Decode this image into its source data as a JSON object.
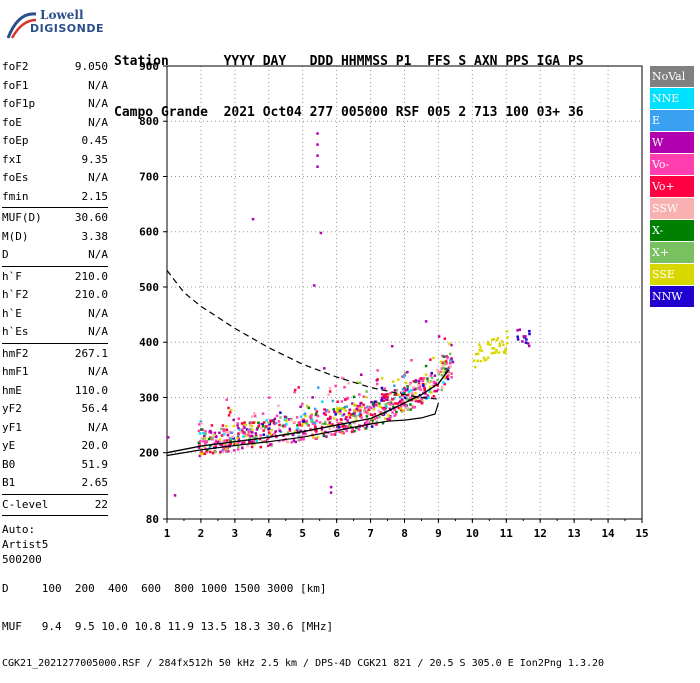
{
  "logo": {
    "line1": "Lowell",
    "line2": "DIGISONDE"
  },
  "header": {
    "row1": "Station       YYYY DAY   DDD HHMMSS P1  FFS S AXN PPS IGA PS",
    "row2": "Campo Grande  2021 Oct04 277 005000 RSF 005 2 713 100 03+ 36"
  },
  "params": {
    "group1": [
      {
        "k": "foF2",
        "v": "9.050"
      },
      {
        "k": "foF1",
        "v": "N/A"
      },
      {
        "k": "foF1p",
        "v": "N/A"
      },
      {
        "k": "foE",
        "v": "N/A"
      },
      {
        "k": "foEp",
        "v": "0.45"
      },
      {
        "k": "fxI",
        "v": "9.35"
      },
      {
        "k": "foEs",
        "v": "N/A"
      },
      {
        "k": "fmin",
        "v": "2.15"
      }
    ],
    "group2": [
      {
        "k": "MUF(D)",
        "v": "30.60"
      },
      {
        "k": "M(D)",
        "v": "3.38"
      },
      {
        "k": "D",
        "v": "N/A"
      }
    ],
    "group3": [
      {
        "k": "h`F",
        "v": "210.0"
      },
      {
        "k": "h`F2",
        "v": "210.0"
      },
      {
        "k": "h`E",
        "v": "N/A"
      },
      {
        "k": "h`Es",
        "v": "N/A"
      }
    ],
    "group4": [
      {
        "k": "hmF2",
        "v": "267.1"
      },
      {
        "k": "hmF1",
        "v": "N/A"
      },
      {
        "k": "hmE",
        "v": "110.0"
      },
      {
        "k": "yF2",
        "v": "56.4"
      },
      {
        "k": "yF1",
        "v": "N/A"
      },
      {
        "k": "yE",
        "v": "20.0"
      },
      {
        "k": "B0",
        "v": "51.9"
      },
      {
        "k": "B1",
        "v": "2.65"
      }
    ],
    "group5": [
      {
        "k": "C-level",
        "v": "22"
      }
    ],
    "notes": [
      "Auto:",
      "Artist5",
      "500200"
    ]
  },
  "legend": [
    {
      "label": "NoVal",
      "color": "#808080"
    },
    {
      "label": "NNE",
      "color": "#00e0ff"
    },
    {
      "label": "E",
      "color": "#3aa0f0"
    },
    {
      "label": "W",
      "color": "#b000b0"
    },
    {
      "label": "Vo-",
      "color": "#ff3fb0"
    },
    {
      "label": "Vo+",
      "color": "#ff0040"
    },
    {
      "label": "SSW",
      "color": "#f8b0b0"
    },
    {
      "label": "X-",
      "color": "#008000"
    },
    {
      "label": "X+",
      "color": "#78c060"
    },
    {
      "label": "SSE",
      "color": "#d8d800"
    },
    {
      "label": "NNW",
      "color": "#2000d0"
    }
  ],
  "chart_data": {
    "type": "scatter",
    "xlabel": "",
    "ylabel": "",
    "xlim": [
      1,
      15
    ],
    "ylim": [
      80,
      900
    ],
    "xticks": [
      1,
      2,
      3,
      4,
      5,
      6,
      7,
      8,
      9,
      10,
      11,
      12,
      13,
      14,
      15
    ],
    "yticks": [
      80,
      200,
      300,
      400,
      500,
      600,
      700,
      800,
      900
    ],
    "grid": true,
    "lines": {
      "dashed": [
        [
          1,
          530
        ],
        [
          1.5,
          490
        ],
        [
          2,
          465
        ],
        [
          3,
          425
        ],
        [
          4,
          390
        ],
        [
          5,
          360
        ],
        [
          6,
          337
        ],
        [
          7,
          318
        ],
        [
          8,
          305
        ],
        [
          8.5,
          300
        ],
        [
          9,
          297
        ]
      ],
      "solid_lower": [
        [
          1,
          195
        ],
        [
          2,
          205
        ],
        [
          3,
          213
        ],
        [
          4,
          220
        ],
        [
          5,
          228
        ],
        [
          6,
          240
        ],
        [
          7,
          252
        ],
        [
          7.5,
          257
        ],
        [
          8,
          259
        ],
        [
          8.5,
          263
        ],
        [
          8.9,
          270
        ],
        [
          9,
          290
        ]
      ],
      "solid_upper": [
        [
          1,
          200
        ],
        [
          2,
          212
        ],
        [
          3,
          220
        ],
        [
          4,
          228
        ],
        [
          5,
          238
        ],
        [
          6,
          250
        ],
        [
          7,
          262
        ],
        [
          7.5,
          275
        ],
        [
          8,
          290
        ],
        [
          8.5,
          305
        ],
        [
          9,
          325
        ],
        [
          9.3,
          350
        ]
      ]
    }
  },
  "footer": {
    "row1": "D     100  200  400  600  800 1000 1500 3000 [km]",
    "row2": "MUF   9.4  9.5 10.0 10.8 11.9 13.5 18.3 30.6 [MHz]",
    "row3": "CGK21_2021277005000.RSF / 284fx512h 50 kHz 2.5 km / DPS-4D CGK21 821 / 20.5 S 305.0 E Ion2Png 1.3.20"
  }
}
